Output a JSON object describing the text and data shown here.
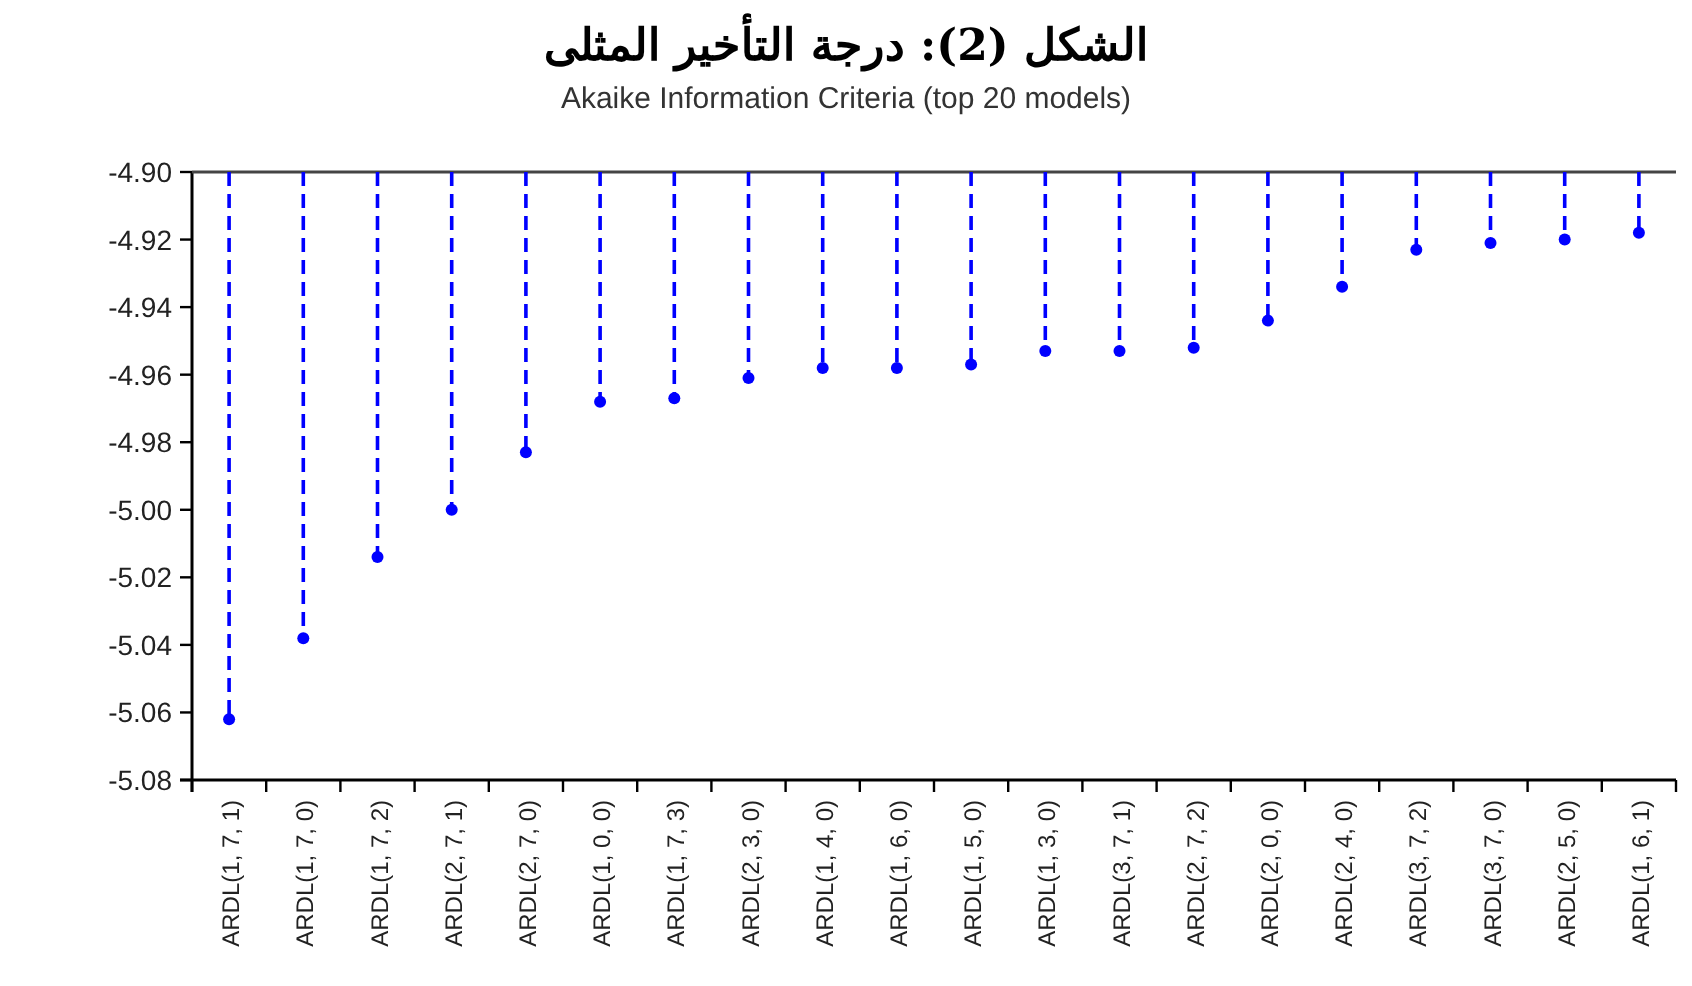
{
  "chart_data": {
    "type": "lollipop",
    "title": "الشكل (2): درجة التأخير المثلى",
    "subtitle": "Akaike Information Criteria (top 20 models)",
    "categories": [
      "ARDL(1, 7, 1)",
      "ARDL(1, 7, 0)",
      "ARDL(1, 7, 2)",
      "ARDL(2, 7, 1)",
      "ARDL(2, 7, 0)",
      "ARDL(1, 0, 0)",
      "ARDL(1, 7, 3)",
      "ARDL(2, 3, 0)",
      "ARDL(1, 4, 0)",
      "ARDL(1, 6, 0)",
      "ARDL(1, 5, 0)",
      "ARDL(1, 3, 0)",
      "ARDL(3, 7, 1)",
      "ARDL(2, 7, 2)",
      "ARDL(2, 0, 0)",
      "ARDL(2, 4, 0)",
      "ARDL(3, 7, 2)",
      "ARDL(3, 7, 0)",
      "ARDL(2, 5, 0)",
      "ARDL(1, 6, 1)"
    ],
    "series": [
      {
        "color": "#0000ff",
        "values": [
          -5.062,
          -5.038,
          -5.014,
          -5.0,
          -4.983,
          -4.968,
          -4.967,
          -4.961,
          -4.958,
          -4.958,
          -4.957,
          -4.953,
          -4.953,
          -4.952,
          -4.944,
          -4.934,
          -4.923,
          -4.921,
          -4.92,
          -4.918
        ]
      }
    ],
    "ylim": [
      -5.08,
      -4.9
    ],
    "yticks": [
      {
        "value": -5.08,
        "label": "-5.08"
      },
      {
        "value": -5.06,
        "label": "-5.06"
      },
      {
        "value": -5.04,
        "label": "-5.04"
      },
      {
        "value": -5.02,
        "label": "-5.02"
      },
      {
        "value": -5.0,
        "label": "-5.00"
      },
      {
        "value": -4.98,
        "label": "-4.98"
      },
      {
        "value": -4.96,
        "label": "-4.96"
      },
      {
        "value": -4.94,
        "label": "-4.94"
      },
      {
        "value": -4.92,
        "label": "-4.92"
      },
      {
        "value": -4.9,
        "label": "-4.90"
      }
    ],
    "marker": "circle",
    "line_style": "dashed"
  }
}
